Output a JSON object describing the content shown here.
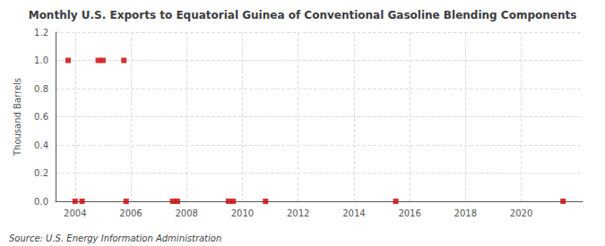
{
  "chart_data": {
    "type": "scatter",
    "title": "Monthly U.S. Exports to Equatorial Guinea of Conventional Gasoline Blending Components",
    "ylabel": "Thousand Barrels",
    "annotations": [
      "Source: U.S. Energy Information Administration"
    ],
    "x": [
      2003.75,
      2004.0,
      2004.25,
      2004.83,
      2005.0,
      2005.75,
      2005.83,
      2007.5,
      2007.67,
      2009.5,
      2009.67,
      2010.83,
      2015.5,
      2021.5
    ],
    "values": [
      1.0,
      0.0,
      0.0,
      1.0,
      1.0,
      1.0,
      0.0,
      0.0,
      0.0,
      0.0,
      0.0,
      0.0,
      0.0,
      0.0
    ],
    "color": "#cc0000",
    "marker": "square",
    "xlim": [
      2003.3,
      2022.2
    ],
    "xticks": [
      2004,
      2006,
      2008,
      2010,
      2012,
      2014,
      2016,
      2018,
      2020
    ],
    "ylim": [
      0.0,
      1.2
    ],
    "yticks": [
      {
        "value": 0.0,
        "label": "0.0"
      },
      0.2,
      0.4,
      0.6,
      0.8,
      {
        "value": 1.0,
        "label": "1.0"
      },
      1.2
    ],
    "grid": true
  }
}
